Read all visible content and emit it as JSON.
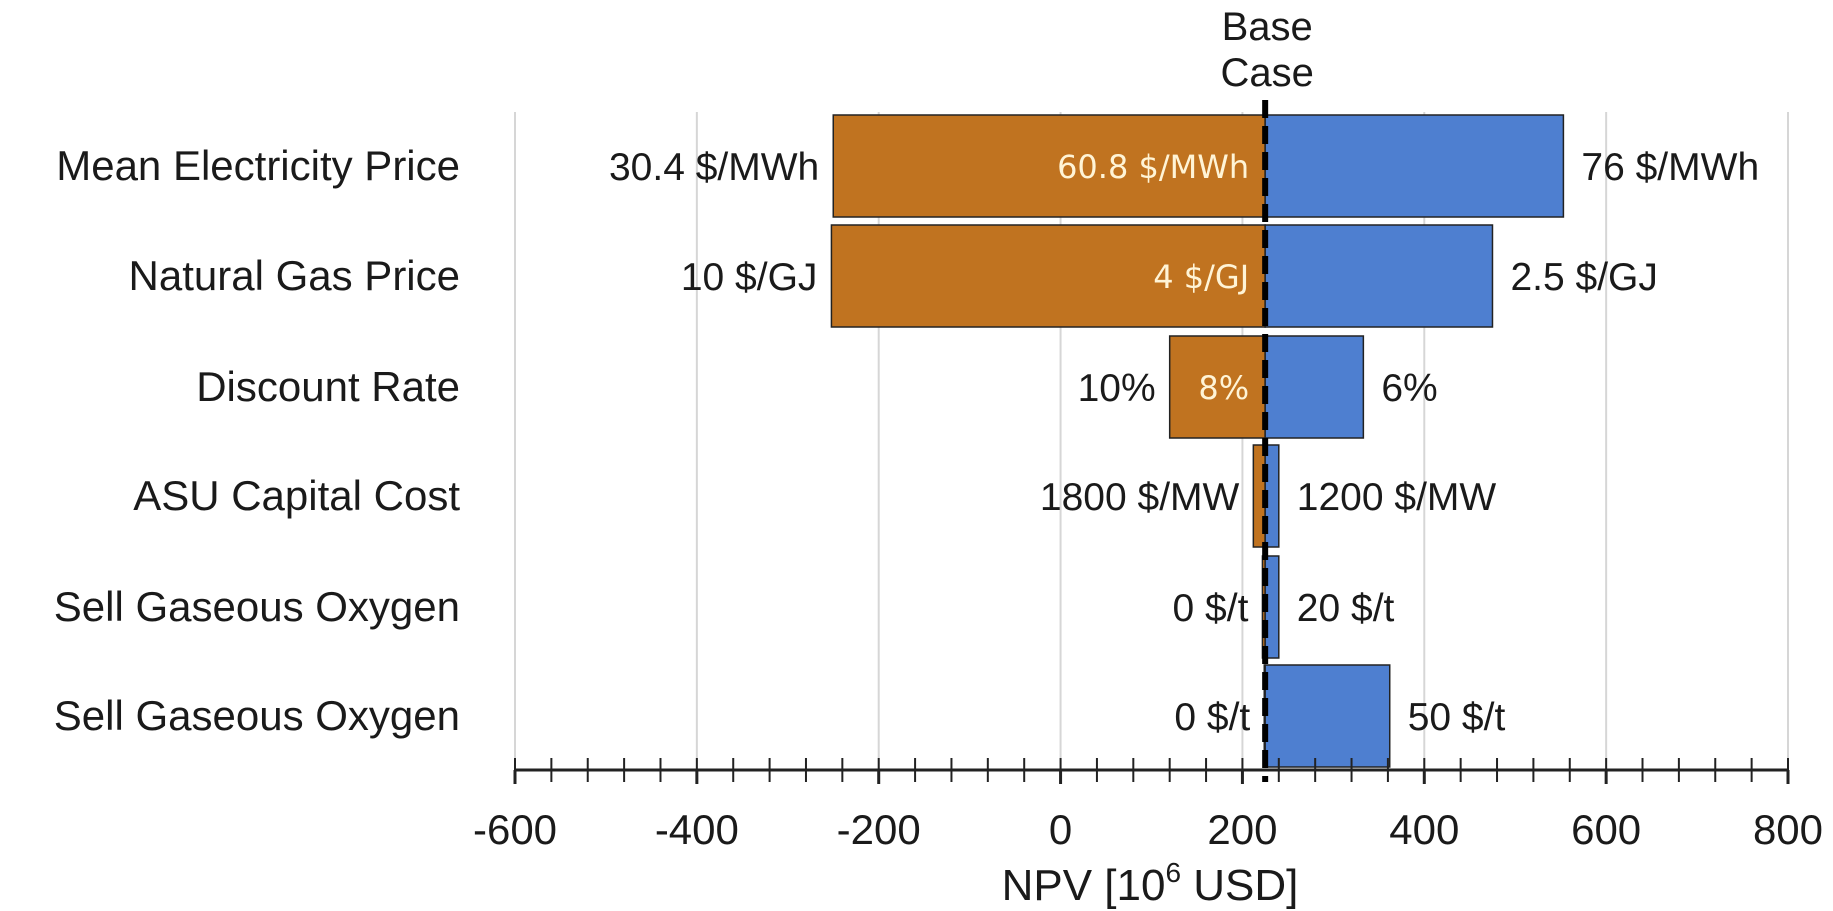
{
  "chart_data": {
    "type": "bar",
    "subtype": "tornado",
    "base_label_line1": "Base",
    "base_label_line2": "Case",
    "base_value": 225,
    "categories": [
      "Mean Electricity Price",
      "Natural Gas Price",
      "Discount Rate",
      "ASU Capital Cost",
      "Sell Gaseous Oxygen",
      "Sell Gaseous Oxygen"
    ],
    "series": [
      {
        "color": "#C07320",
        "low_values": [
          -250,
          -252,
          120,
          212,
          222,
          224
        ],
        "end_labels": [
          "30.4 $/MWh",
          "10 $/GJ",
          "10%",
          "1800 $/MW",
          "0 $/t",
          "0 $/t"
        ],
        "mid_labels": [
          "60.8 $/MWh",
          "4 $/GJ",
          "8%",
          "",
          "",
          ""
        ]
      },
      {
        "color": "#4E7FD0",
        "high_values": [
          553,
          475,
          333,
          240,
          240,
          362
        ],
        "end_labels": [
          "76 $/MWh",
          "2.5 $/GJ",
          "6%",
          "1200 $/MW",
          "20 $/t",
          "50 $/t"
        ]
      }
    ],
    "xlim": [
      -600,
      800
    ],
    "xticks": [
      "-600",
      "-400",
      "-200",
      "0",
      "200",
      "400",
      "600",
      "800"
    ],
    "xtick_values": [
      -600,
      -400,
      -200,
      0,
      200,
      400,
      600,
      800
    ],
    "minor_tick_step": 40,
    "xlabel_prefix": "NPV [10",
    "xlabel_sup": "6",
    "xlabel_suffix": " USD]",
    "grid": "vertical"
  }
}
